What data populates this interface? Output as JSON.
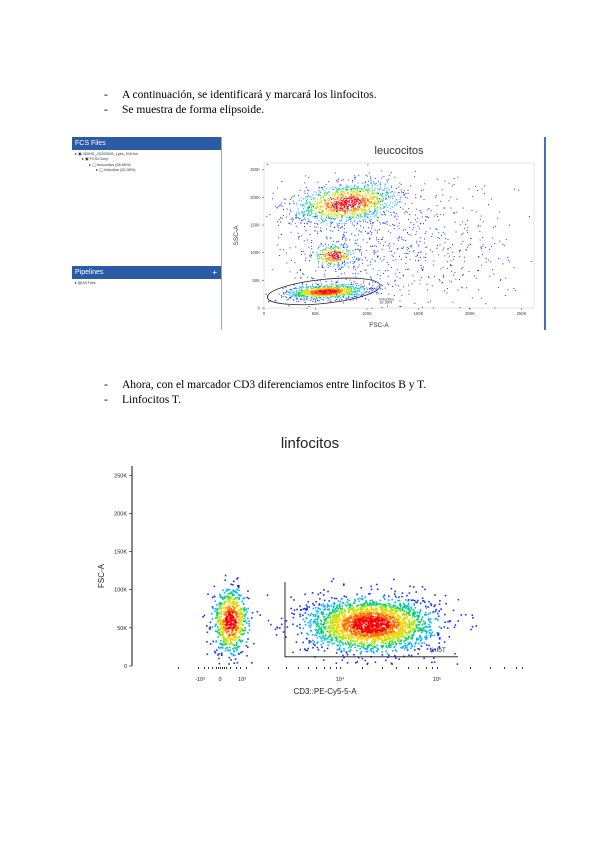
{
  "bullets_1": [
    "A continuación, se identificará y marcará los linfocitos.",
    "Se muestra de forma elipsoide."
  ],
  "bullets_2": [
    "Ahora, con el marcador CD3 diferenciamos entre linfocitos B y T.",
    "Linfocitos T."
  ],
  "figure1": {
    "fcs_panel_title": "FCS Files",
    "tree": [
      "450HG_20200505_Lyes_016.fcs",
      "FCS/Comp",
      "leucocitos (68.66%)",
      "linfocitos (32.38%)"
    ],
    "pipelines_title": "Pipelines",
    "pipelines_add": "+",
    "pipelines_item": "All Files",
    "plot": {
      "title": "leucocitos",
      "xlabel": "FSC-A",
      "ylabel": "SSC-A",
      "x_ticks": [
        "0",
        "50K",
        "100K",
        "150K",
        "200K",
        "250K"
      ],
      "y_ticks": [
        "0",
        "50K",
        "100K",
        "150K",
        "200K",
        "250K"
      ],
      "xlim": [
        0,
        262144
      ],
      "ylim": [
        0,
        262144
      ],
      "gate_label": "linfocitos",
      "gate_percent": "32.38%"
    }
  },
  "figure2": {
    "plot": {
      "title": "linfocitos",
      "xlabel": "CD3::PE-Cy5-5-A",
      "ylabel": "FSC-A",
      "y_ticks": [
        "0",
        "50K",
        "100K",
        "150K",
        "200K",
        "250K"
      ],
      "x_ticks": [
        "-10³",
        "0",
        "10³",
        "10⁴",
        "10⁵"
      ],
      "ylim": [
        0,
        262144
      ],
      "gate_label": "linfoT"
    }
  },
  "colors": {
    "header_blue": "#2b5ba6",
    "density": [
      "#1a2fff",
      "#00b3ff",
      "#00d070",
      "#a8e800",
      "#ffd000",
      "#ff6a00",
      "#ff0000"
    ]
  }
}
